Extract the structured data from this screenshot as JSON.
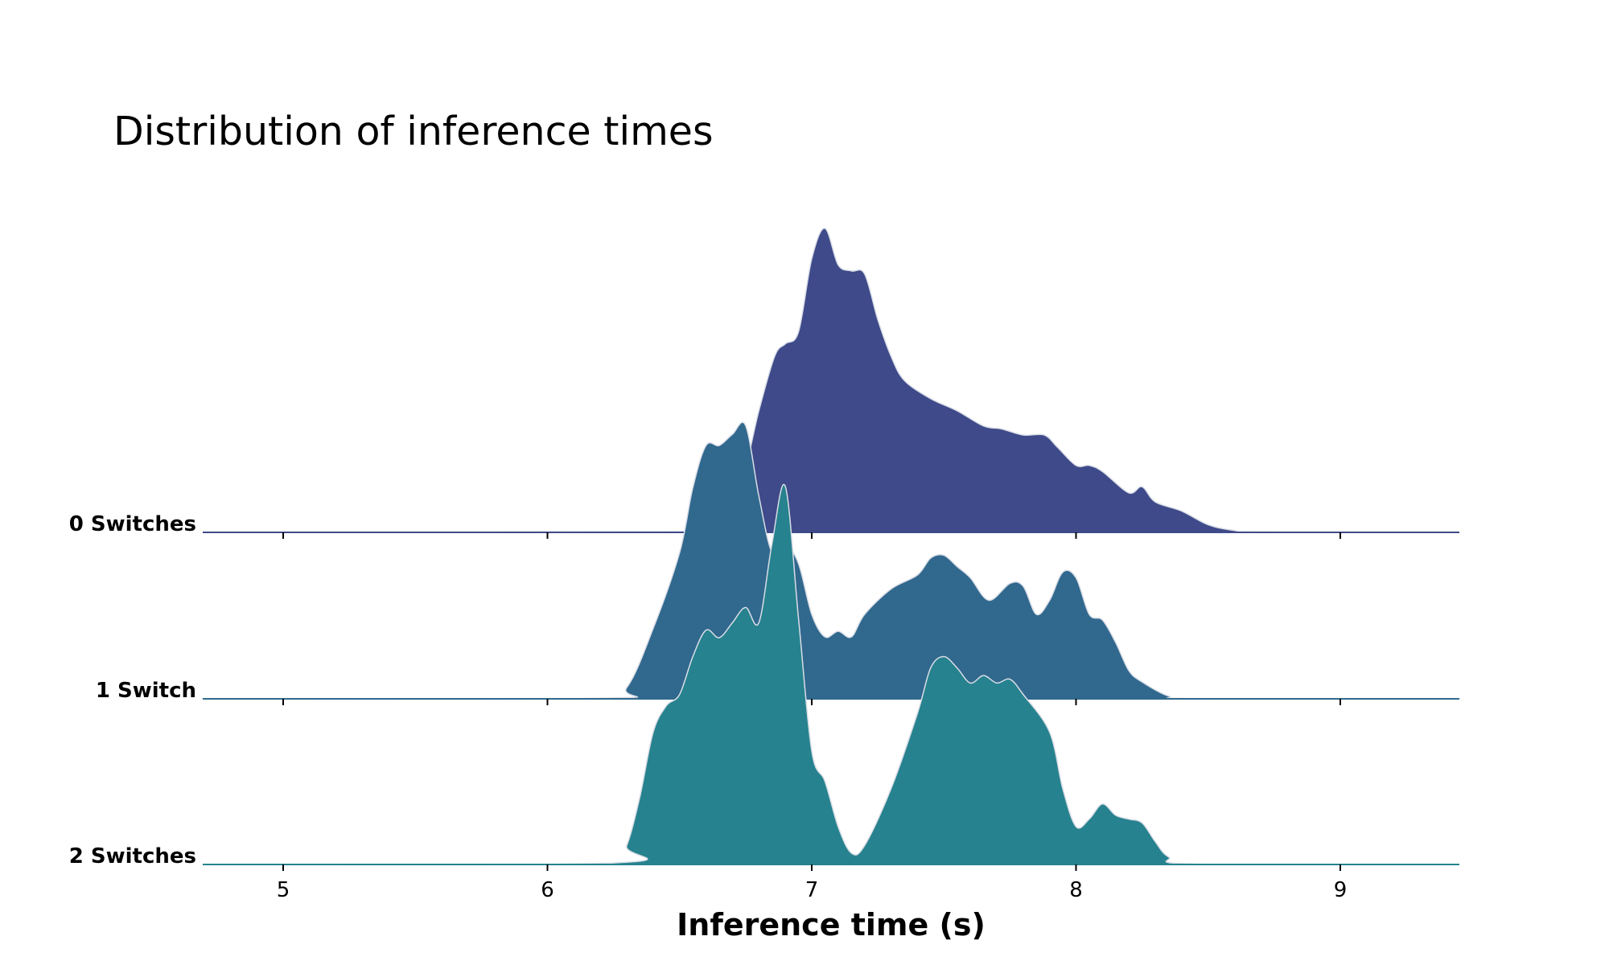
{
  "chart_data": {
    "type": "area",
    "subtype": "ridgeline",
    "title": "Distribution of inference times",
    "xlabel": "Inference time (s)",
    "ylabel": "",
    "xlim": [
      4.7,
      9.45
    ],
    "xticks": [
      5,
      6,
      7,
      8,
      9
    ],
    "grid": false,
    "legend": "none",
    "outline_color": "#d9dde6",
    "series": [
      {
        "name": "0 Switches",
        "color": "#3e4a89",
        "x": [
          4.7,
          6.55,
          6.62,
          6.72,
          6.8,
          6.86,
          6.9,
          6.95,
          7.0,
          7.05,
          7.1,
          7.15,
          7.2,
          7.25,
          7.3,
          7.35,
          7.45,
          7.55,
          7.65,
          7.72,
          7.8,
          7.88,
          7.93,
          8.0,
          8.05,
          8.1,
          8.2,
          8.25,
          8.3,
          8.4,
          8.5,
          8.6,
          8.7,
          9.45
        ],
        "y": [
          0,
          0.002,
          0.01,
          0.12,
          0.4,
          0.58,
          0.62,
          0.66,
          0.9,
          1.0,
          0.88,
          0.86,
          0.85,
          0.7,
          0.58,
          0.5,
          0.44,
          0.4,
          0.35,
          0.34,
          0.32,
          0.32,
          0.28,
          0.22,
          0.22,
          0.2,
          0.13,
          0.15,
          0.1,
          0.07,
          0.025,
          0.006,
          0.001,
          0
        ]
      },
      {
        "name": "1 Switch",
        "color": "#31688e",
        "x": [
          4.7,
          6.2,
          6.3,
          6.4,
          6.5,
          6.55,
          6.6,
          6.65,
          6.7,
          6.75,
          6.8,
          6.85,
          6.9,
          6.95,
          7.0,
          7.05,
          7.1,
          7.15,
          7.2,
          7.3,
          7.4,
          7.45,
          7.5,
          7.55,
          7.6,
          7.67,
          7.75,
          7.8,
          7.85,
          7.9,
          7.95,
          8.0,
          8.05,
          8.1,
          8.15,
          8.2,
          8.25,
          8.35,
          8.45,
          9.45
        ],
        "y": [
          0,
          0.002,
          0.04,
          0.25,
          0.52,
          0.75,
          0.9,
          0.9,
          0.94,
          0.97,
          0.72,
          0.52,
          0.55,
          0.48,
          0.3,
          0.22,
          0.24,
          0.22,
          0.3,
          0.39,
          0.44,
          0.5,
          0.51,
          0.47,
          0.43,
          0.35,
          0.41,
          0.4,
          0.3,
          0.35,
          0.45,
          0.43,
          0.3,
          0.28,
          0.2,
          0.1,
          0.06,
          0.01,
          0.001,
          0
        ]
      },
      {
        "name": "2 Switches",
        "color": "#26828e",
        "x": [
          4.7,
          6.25,
          6.3,
          6.35,
          6.4,
          6.45,
          6.5,
          6.55,
          6.6,
          6.65,
          6.7,
          6.75,
          6.8,
          6.85,
          6.9,
          6.95,
          7.0,
          7.05,
          7.1,
          7.15,
          7.2,
          7.3,
          7.4,
          7.45,
          7.5,
          7.55,
          7.6,
          7.65,
          7.7,
          7.75,
          7.8,
          7.9,
          7.95,
          8.0,
          8.05,
          8.1,
          8.15,
          8.2,
          8.25,
          8.3,
          8.35,
          8.45,
          9.45
        ],
        "y": [
          0,
          0.004,
          0.05,
          0.18,
          0.35,
          0.42,
          0.45,
          0.55,
          0.62,
          0.6,
          0.64,
          0.68,
          0.64,
          0.85,
          1.0,
          0.65,
          0.3,
          0.22,
          0.1,
          0.03,
          0.05,
          0.2,
          0.4,
          0.52,
          0.55,
          0.52,
          0.48,
          0.5,
          0.48,
          0.49,
          0.45,
          0.35,
          0.2,
          0.1,
          0.12,
          0.16,
          0.13,
          0.12,
          0.11,
          0.06,
          0.02,
          0.001,
          0
        ]
      }
    ]
  }
}
